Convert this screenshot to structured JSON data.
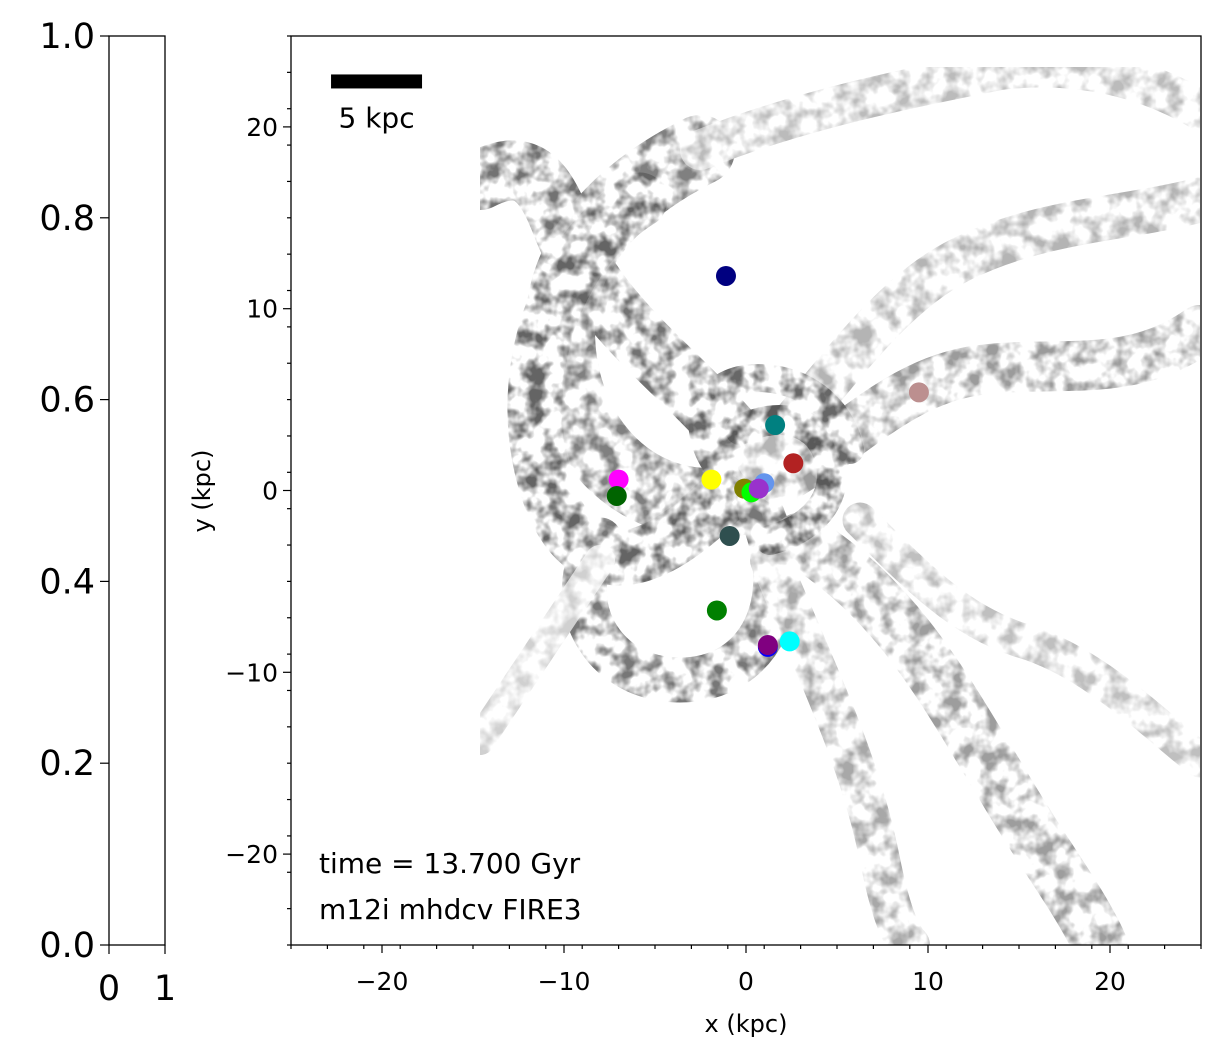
{
  "chart_data": [
    {
      "type": "colorbar",
      "orientation": "vertical",
      "ylim": [
        0.0,
        1.0
      ],
      "xlim": [
        0,
        1
      ],
      "yticks": [
        "0.0",
        "0.2",
        "0.4",
        "0.6",
        "0.8",
        "1.0"
      ],
      "xticks": [
        "0",
        "1"
      ],
      "fill": "empty"
    },
    {
      "type": "scatter",
      "background": "grayscale gas density map (spiral galaxy)",
      "xlabel": "x (kpc)",
      "ylabel": "y (kpc)",
      "xlim": [
        -25,
        25
      ],
      "ylim": [
        -25,
        25
      ],
      "xticks": [
        "−20",
        "−10",
        "0",
        "10",
        "20"
      ],
      "yticks": [
        "−20",
        "−10",
        "0",
        "10",
        "20"
      ],
      "scalebar": {
        "label": "5 kpc",
        "length": 5,
        "x_start": -22.8,
        "y": 22.5
      },
      "annotations": [
        "time = 13.700 Gyr",
        "m12i mhdcv FIRE3"
      ],
      "points": [
        {
          "x": -1.1,
          "y": 11.8,
          "color": "#000080"
        },
        {
          "x": 9.5,
          "y": 5.4,
          "color": "#bc8f8f"
        },
        {
          "x": 1.6,
          "y": 3.6,
          "color": "#008080"
        },
        {
          "x": 2.6,
          "y": 1.5,
          "color": "#b22222"
        },
        {
          "x": -7.0,
          "y": 0.6,
          "color": "#ff00ff"
        },
        {
          "x": -1.9,
          "y": 0.6,
          "color": "#ffff00"
        },
        {
          "x": -0.1,
          "y": 0.1,
          "color": "#808000"
        },
        {
          "x": 0.3,
          "y": -0.1,
          "color": "#00ff00"
        },
        {
          "x": 1.0,
          "y": 0.4,
          "color": "#6495ed"
        },
        {
          "x": 0.7,
          "y": 0.1,
          "color": "#9932cc"
        },
        {
          "x": -7.1,
          "y": -0.3,
          "color": "#006400"
        },
        {
          "x": -0.9,
          "y": -2.5,
          "color": "#2f4f4f"
        },
        {
          "x": -1.6,
          "y": -6.6,
          "color": "#008000"
        },
        {
          "x": 1.2,
          "y": -8.6,
          "color": "#0000ff"
        },
        {
          "x": 1.2,
          "y": -8.5,
          "color": "#800080"
        },
        {
          "x": 2.4,
          "y": -8.3,
          "color": "#00ffff"
        }
      ]
    }
  ]
}
